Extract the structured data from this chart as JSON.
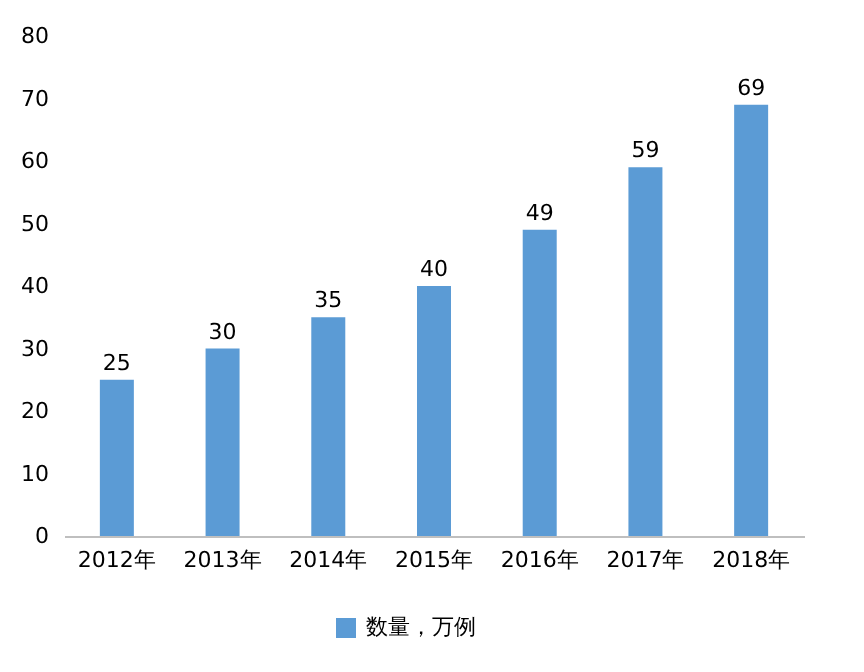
{
  "chart_data": {
    "type": "bar",
    "categories": [
      "2012年",
      "2013年",
      "2014年",
      "2015年",
      "2016年",
      "2017年",
      "2018年"
    ],
    "series": [
      {
        "name": "数量，万例",
        "color": "#5b9bd5",
        "values": [
          25,
          30,
          35,
          40,
          49,
          59,
          69
        ]
      }
    ],
    "ylim": [
      0,
      80
    ],
    "yticks": [
      0,
      10,
      20,
      30,
      40,
      50,
      60,
      70,
      80
    ],
    "grid": false,
    "legend": "bottom",
    "data_labels": true
  }
}
